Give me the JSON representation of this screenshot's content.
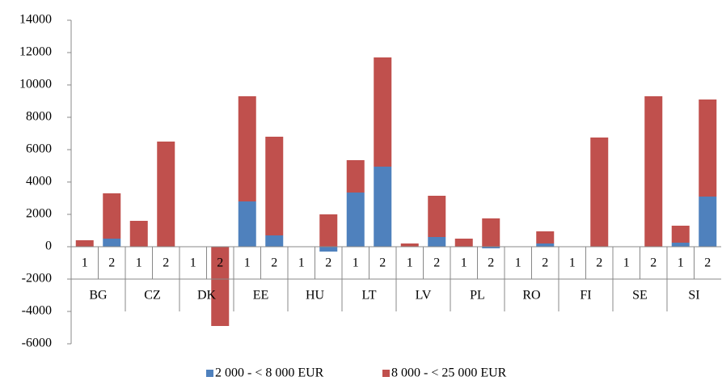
{
  "chart_data": {
    "type": "bar",
    "stacked": true,
    "groups": [
      "BG",
      "CZ",
      "DK",
      "EE",
      "HU",
      "LT",
      "LV",
      "PL",
      "RO",
      "FI",
      "SE",
      "SI"
    ],
    "categories": [
      "1",
      "2",
      "1",
      "2",
      "1",
      "2",
      "1",
      "2",
      "1",
      "2",
      "1",
      "2",
      "1",
      "2",
      "1",
      "2",
      "1",
      "2",
      "1",
      "2",
      "1",
      "2",
      "1",
      "2"
    ],
    "series": [
      {
        "name": "2 000 - < 8 000 EUR",
        "color": "#4f81bd",
        "values": [
          0,
          500,
          0,
          0,
          0,
          0,
          2800,
          700,
          0,
          -300,
          3350,
          4950,
          0,
          600,
          0,
          -100,
          0,
          200,
          0,
          0,
          0,
          0,
          250,
          3100
        ]
      },
      {
        "name": "8 000 - < 25 000 EUR",
        "color": "#c0504d",
        "values": [
          400,
          2800,
          1600,
          6500,
          0,
          -4900,
          6500,
          6100,
          0,
          2000,
          2000,
          6750,
          200,
          2550,
          500,
          1750,
          0,
          750,
          0,
          6750,
          0,
          9300,
          1050,
          6000
        ]
      }
    ],
    "ylim": [
      -6000,
      14000
    ],
    "yticks": [
      -6000,
      -4000,
      -2000,
      0,
      2000,
      4000,
      6000,
      8000,
      10000,
      12000,
      14000
    ],
    "legend": "bottom"
  }
}
